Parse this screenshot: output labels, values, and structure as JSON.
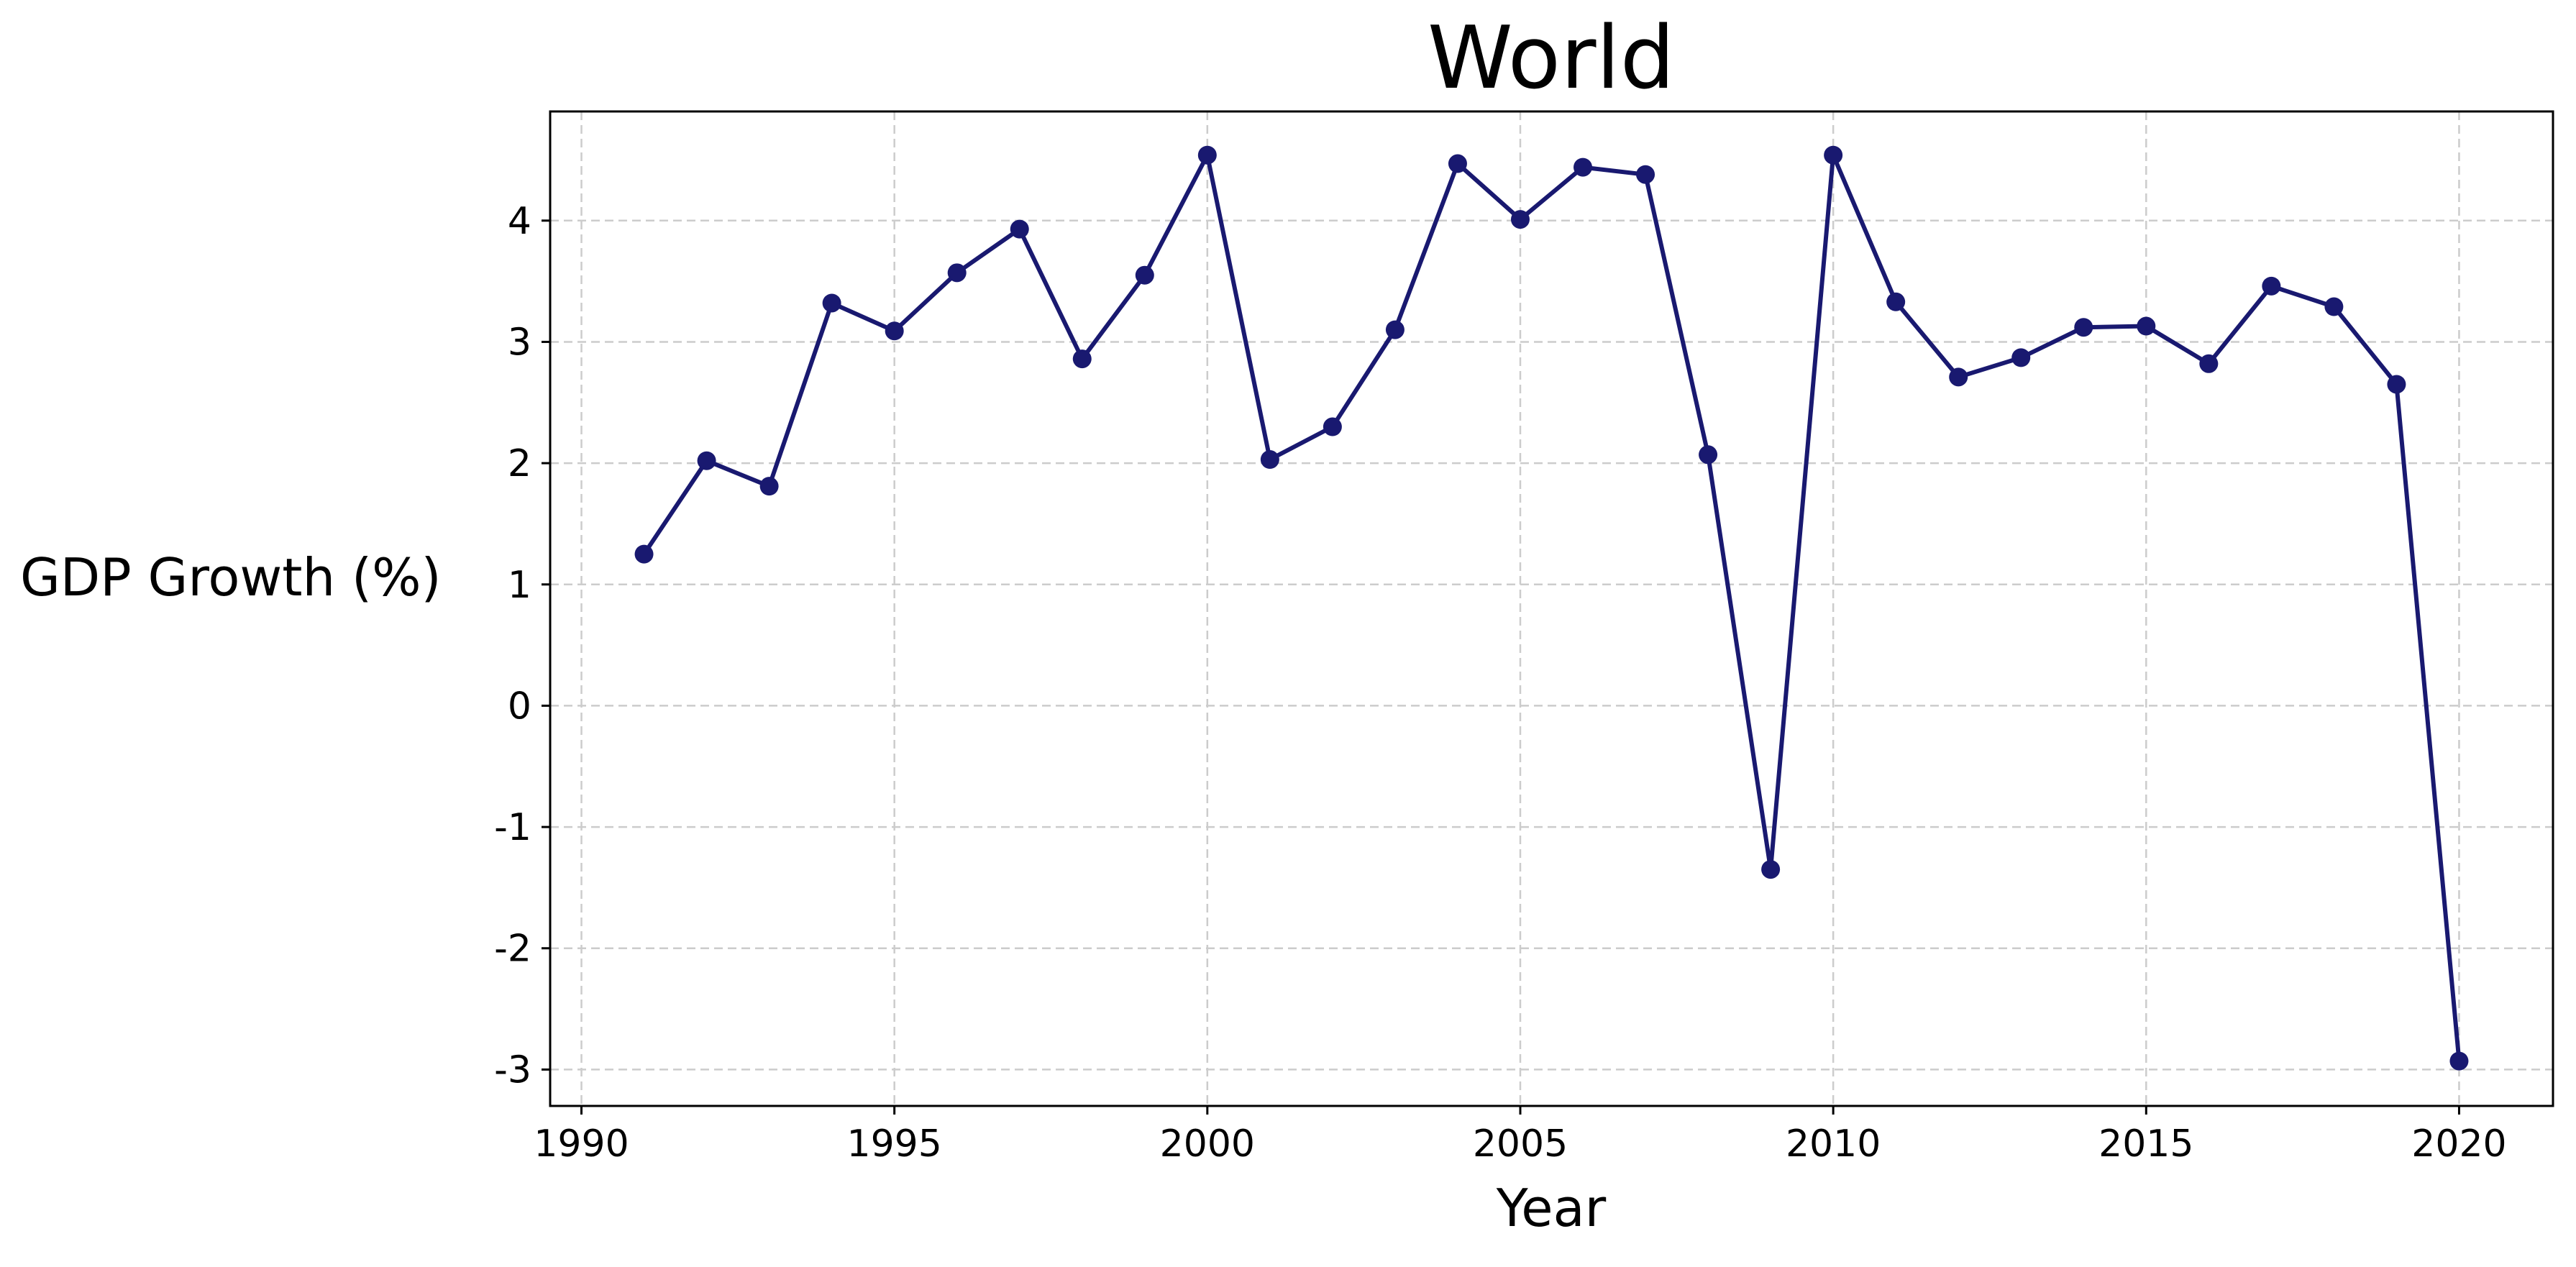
{
  "chart_data": {
    "type": "line",
    "title": "World",
    "xlabel": "Year",
    "ylabel": "GDP Growth (%)",
    "xlim": [
      1989.5,
      2021.5
    ],
    "ylim": [
      -3.3,
      4.9
    ],
    "grid": true,
    "legend": "none",
    "x_ticks": [
      1990,
      1995,
      2000,
      2005,
      2010,
      2015,
      2020
    ],
    "y_ticks": [
      -3,
      -2,
      -1,
      0,
      1,
      2,
      3,
      4
    ],
    "series": [
      {
        "color": "#191970",
        "x": [
          1991,
          1992,
          1993,
          1994,
          1995,
          1996,
          1997,
          1998,
          1999,
          2000,
          2001,
          2002,
          2003,
          2004,
          2005,
          2006,
          2007,
          2008,
          2009,
          2010,
          2011,
          2012,
          2013,
          2014,
          2015,
          2016,
          2017,
          2018,
          2019,
          2020
        ],
        "y": [
          1.25,
          2.02,
          1.81,
          3.32,
          3.09,
          3.57,
          3.93,
          2.86,
          3.55,
          4.54,
          2.03,
          2.3,
          3.1,
          4.47,
          4.01,
          4.44,
          4.38,
          2.07,
          -1.35,
          4.54,
          3.33,
          2.71,
          2.87,
          3.12,
          3.13,
          2.82,
          3.46,
          3.29,
          2.65,
          -2.93
        ]
      }
    ]
  }
}
